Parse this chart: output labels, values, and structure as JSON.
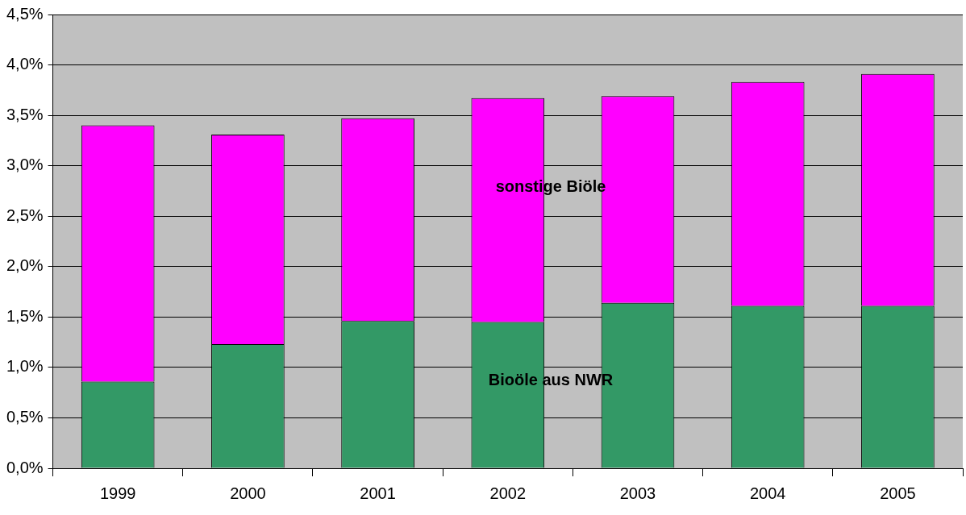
{
  "chart_data": {
    "type": "bar",
    "stacked": true,
    "categories": [
      "1999",
      "2000",
      "2001",
      "2002",
      "2003",
      "2004",
      "2005"
    ],
    "series": [
      {
        "name": "Bioöle aus NWR",
        "color": "#339966",
        "values": [
          0.86,
          1.23,
          1.46,
          1.45,
          1.64,
          1.61,
          1.61
        ]
      },
      {
        "name": "sonstige Biöle",
        "color": "#ff00ff",
        "values": [
          2.54,
          2.08,
          2.01,
          2.22,
          2.05,
          2.22,
          2.3
        ]
      }
    ],
    "ylim": [
      0,
      4.5
    ],
    "yticks": [
      {
        "value": 0,
        "label": "0,0%"
      },
      {
        "value": 0.5,
        "label": "0,5%"
      },
      {
        "value": 1,
        "label": "1,0%"
      },
      {
        "value": 1.5,
        "label": "1,5%"
      },
      {
        "value": 2,
        "label": "2,0%"
      },
      {
        "value": 2.5,
        "label": "2,5%"
      },
      {
        "value": 3,
        "label": "3,0%"
      },
      {
        "value": 3.5,
        "label": "3,5%"
      },
      {
        "value": 4,
        "label": "4,0%"
      },
      {
        "value": 4.5,
        "label": "4,5%"
      }
    ],
    "grid": "y",
    "legend": false
  }
}
